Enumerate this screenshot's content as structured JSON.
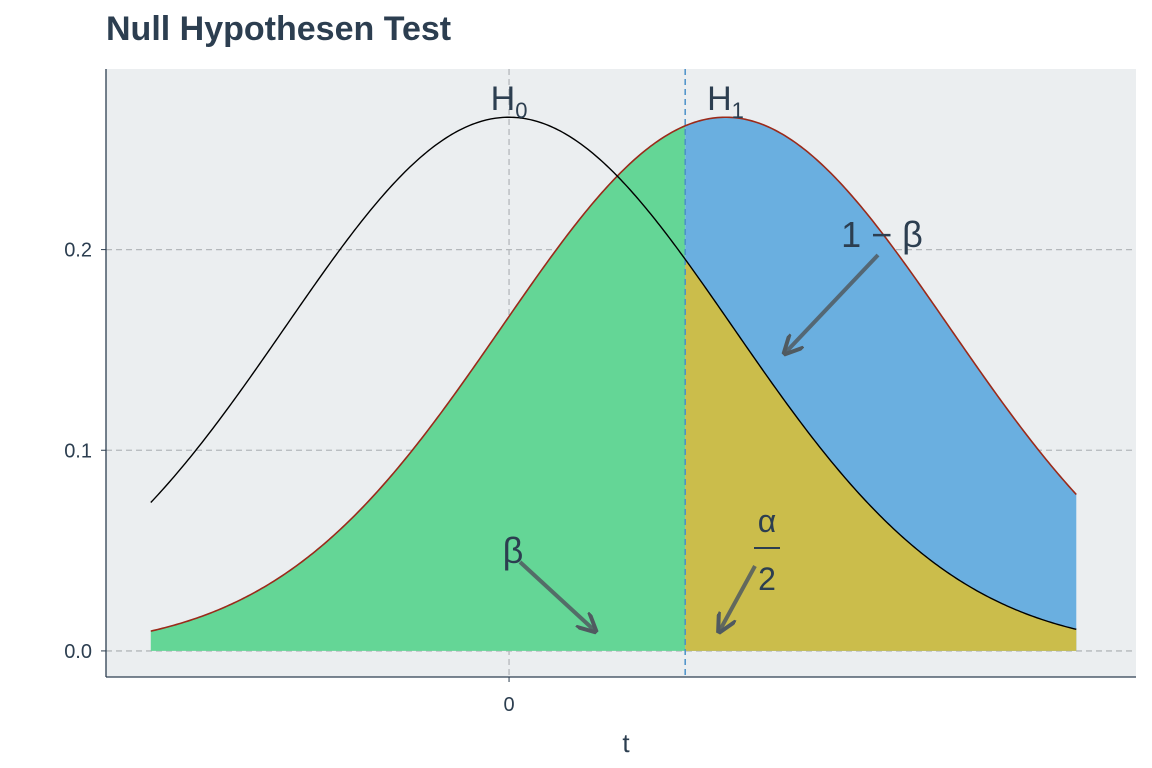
{
  "chart_data": {
    "type": "area",
    "title": "Null Hypothesen Test",
    "xlabel": "t",
    "ylabel": "",
    "x_ticks": [
      {
        "value": 0,
        "label": "0"
      }
    ],
    "y_ticks": [
      {
        "value": 0.0,
        "label": "0.0"
      },
      {
        "value": 0.1,
        "label": "0.1"
      },
      {
        "value": 0.2,
        "label": "0.2"
      }
    ],
    "xlim": [
      -2.7,
      4.2
    ],
    "ylim": [
      -0.013,
      0.29
    ],
    "grid": true,
    "distributions": {
      "h0": {
        "label": "H",
        "subscript": "0",
        "mean": 0,
        "sd": 1.5
      },
      "h1": {
        "label": "H",
        "subscript": "1",
        "mean": 1.45,
        "sd": 1.5
      }
    },
    "critical_value": 1.18,
    "plot_range": [
      -2.4,
      3.8
    ],
    "regions": {
      "beta": {
        "label": "β",
        "color": "#64d696"
      },
      "power": {
        "label": "1 − β",
        "color": "#6aafe0"
      },
      "alpha_half": {
        "numerator": "α",
        "denominator": "2",
        "color": "#cbbd4b"
      }
    },
    "colors": {
      "panel_background": "#ebeef0",
      "grid": "#b4b8bb",
      "critical_line": "#4a90c8",
      "h0_curve": "#000000",
      "h1_curve": "#9b2a1a",
      "arrow": "#505a60"
    }
  }
}
